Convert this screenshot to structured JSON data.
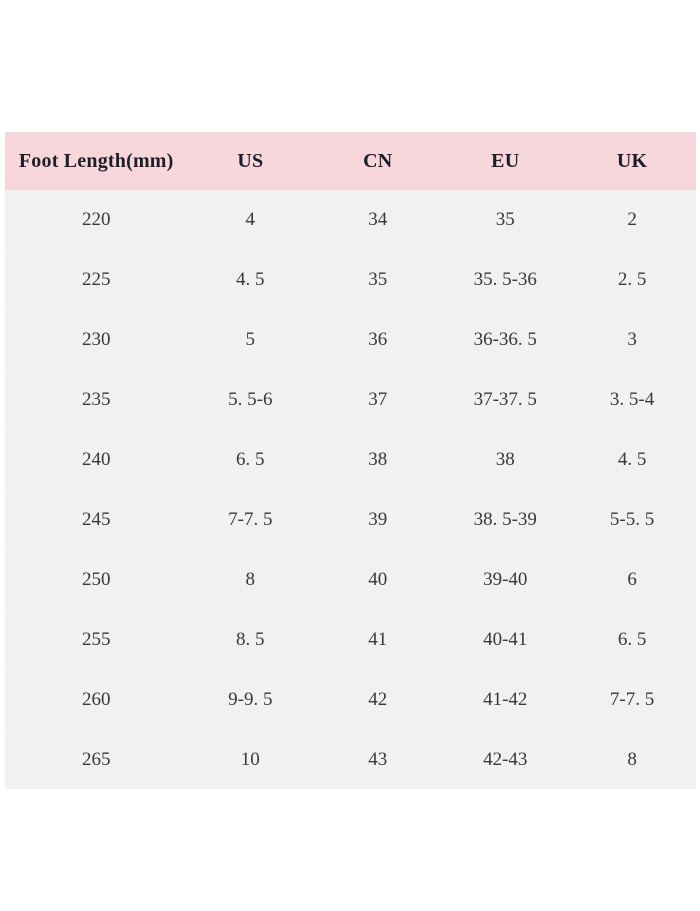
{
  "colors": {
    "header_bg": "#f8d7dc",
    "body_bg": "#f1f1f1",
    "header_text": "#1e1e28",
    "body_text": "#38383d",
    "page_bg": "#ffffff"
  },
  "chart_data": {
    "type": "table",
    "title": "",
    "columns": [
      "Foot Length(mm)",
      "US",
      "CN",
      "EU",
      "UK"
    ],
    "rows": [
      [
        "220",
        "4",
        "34",
        "35",
        "2"
      ],
      [
        "225",
        "4. 5",
        "35",
        "35. 5-36",
        "2. 5"
      ],
      [
        "230",
        "5",
        "36",
        "36-36. 5",
        "3"
      ],
      [
        "235",
        "5. 5-6",
        "37",
        "37-37. 5",
        "3. 5-4"
      ],
      [
        "240",
        "6. 5",
        "38",
        "38",
        "4. 5"
      ],
      [
        "245",
        "7-7. 5",
        "39",
        "38. 5-39",
        "5-5. 5"
      ],
      [
        "250",
        "8",
        "40",
        "39-40",
        "6"
      ],
      [
        "255",
        "8. 5",
        "41",
        "40-41",
        "6. 5"
      ],
      [
        "260",
        "9-9. 5",
        "42",
        "41-42",
        "7-7. 5"
      ],
      [
        "265",
        "10",
        "43",
        "42-43",
        "8"
      ]
    ]
  }
}
